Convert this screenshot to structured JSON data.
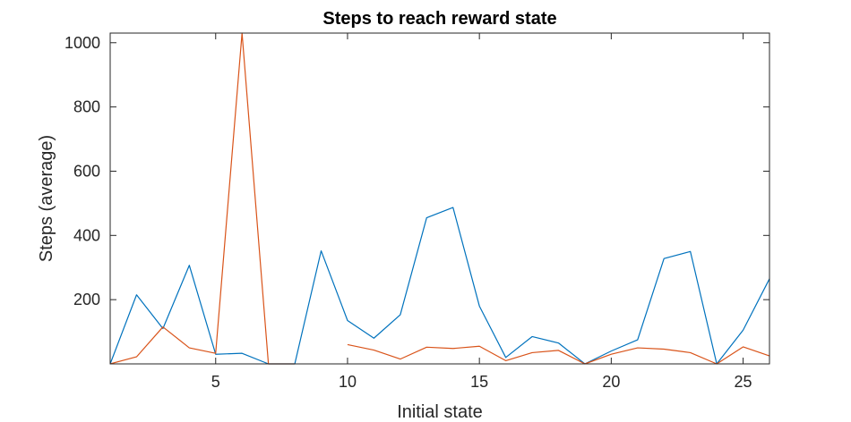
{
  "chart_data": {
    "type": "line",
    "title": "Steps to reach reward state",
    "xlabel": "Initial state",
    "ylabel": "Steps (average)",
    "xlim": [
      1,
      26
    ],
    "ylim": [
      0,
      1030
    ],
    "xticks": [
      5,
      10,
      15,
      20,
      25
    ],
    "yticks": [
      200,
      400,
      600,
      800,
      1000
    ],
    "grid": false,
    "x": [
      1,
      2,
      3,
      4,
      5,
      6,
      7,
      8,
      9,
      10,
      11,
      12,
      13,
      14,
      15,
      16,
      17,
      18,
      19,
      20,
      21,
      22,
      23,
      24,
      25,
      26
    ],
    "series": [
      {
        "color": "#0072BD",
        "values": [
          0,
          215,
          110,
          307,
          30,
          33,
          0,
          0,
          352,
          135,
          80,
          153,
          455,
          487,
          180,
          20,
          85,
          65,
          0,
          40,
          75,
          328,
          350,
          0,
          105,
          265
        ]
      },
      {
        "color": "#D95319",
        "values": [
          0,
          22,
          115,
          50,
          33,
          1030,
          0,
          0,
          null,
          60,
          43,
          15,
          52,
          48,
          55,
          10,
          35,
          42,
          0,
          30,
          50,
          46,
          35,
          0,
          53,
          25
        ]
      }
    ]
  }
}
